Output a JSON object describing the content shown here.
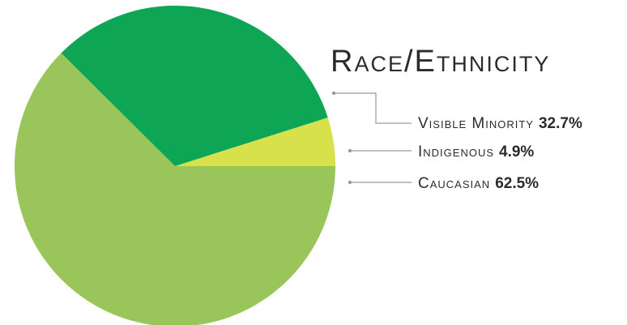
{
  "chart_data": {
    "type": "pie",
    "title": "Race/Ethnicity",
    "slices": [
      {
        "label": "Visible Minority",
        "value": 32.7,
        "value_label": "32.7%",
        "color": "#0ea654"
      },
      {
        "label": "Indigenous",
        "value": 4.9,
        "value_label": "4.9%",
        "color": "#d7e14b"
      },
      {
        "label": "Caucasian",
        "value": 62.5,
        "value_label": "62.5%",
        "color": "#9ac55a"
      }
    ],
    "start_angle_deg": 0,
    "direction": "counterclockwise",
    "legend_position": "right"
  }
}
